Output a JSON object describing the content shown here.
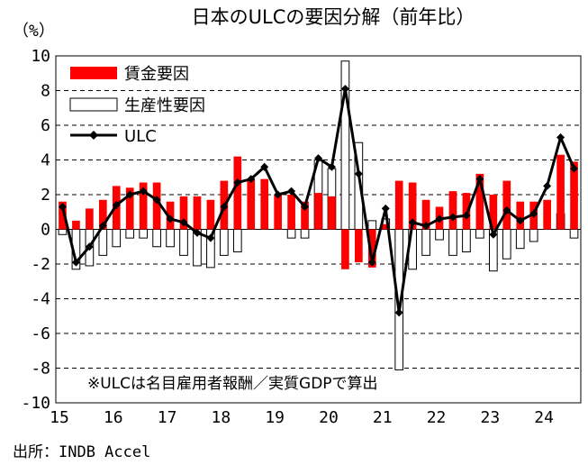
{
  "chart_data": {
    "type": "bar",
    "title": "日本のULCの要因分解（前年比）",
    "unit_label": "（%）",
    "ylim": [
      -10,
      10
    ],
    "y_ticks": [
      10,
      8,
      6,
      4,
      2,
      0,
      -2,
      -4,
      -6,
      -8,
      -10
    ],
    "grid": "horizontal dashed",
    "legend_position": "top-left",
    "note": "※ULCは名目雇用者報酬／実質GDPで算出",
    "source": "出所：INDB Accel",
    "x_tick_labels": [
      {
        "label": "15",
        "index": 0
      },
      {
        "label": "16",
        "index": 4
      },
      {
        "label": "17",
        "index": 8
      },
      {
        "label": "18",
        "index": 12
      },
      {
        "label": "19",
        "index": 16
      },
      {
        "label": "20",
        "index": 20
      },
      {
        "label": "21",
        "index": 24
      },
      {
        "label": "22",
        "index": 28
      },
      {
        "label": "23",
        "index": 32
      },
      {
        "label": "24",
        "index": 36
      }
    ],
    "series": [
      {
        "name": "賃金要因",
        "kind": "bar",
        "color": "#ff0000",
        "values": [
          1.6,
          0.5,
          1.2,
          1.7,
          2.5,
          2.4,
          2.7,
          2.7,
          1.6,
          1.9,
          1.9,
          1.7,
          2.8,
          4.2,
          2.9,
          2.9,
          2.0,
          2.0,
          1.6,
          2.1,
          1.9,
          -2.3,
          -1.9,
          -2.2,
          0.3,
          2.8,
          2.7,
          1.7,
          1.3,
          2.2,
          2.1,
          3.2,
          2.0,
          2.8,
          1.6,
          1.6,
          1.7,
          4.3,
          3.9
        ]
      },
      {
        "name": "生産性要因",
        "kind": "bar",
        "color": "#ffffff",
        "values": [
          -0.3,
          -2.3,
          -2.1,
          -1.5,
          -1.0,
          -0.5,
          -0.5,
          -1.0,
          -1.0,
          -1.5,
          -2.1,
          -2.2,
          -1.5,
          -1.3,
          0.0,
          0.0,
          0.0,
          -0.5,
          -0.5,
          4.0,
          3.5,
          9.7,
          5.0,
          0.5,
          0.6,
          -8.1,
          -2.3,
          -1.5,
          -0.6,
          -1.5,
          -1.3,
          -0.5,
          -2.4,
          -1.7,
          -1.1,
          -0.7,
          0.0,
          0.9,
          -0.5
        ]
      },
      {
        "name": "ULC",
        "kind": "line",
        "color": "#000000",
        "values": [
          1.3,
          -1.9,
          -1.0,
          0.2,
          1.4,
          2.0,
          2.2,
          1.7,
          0.6,
          0.4,
          -0.2,
          -0.5,
          1.3,
          2.7,
          2.9,
          3.6,
          2.0,
          2.2,
          1.3,
          4.1,
          3.6,
          8.1,
          3.2,
          -1.9,
          1.2,
          -4.8,
          0.4,
          0.2,
          0.6,
          0.7,
          0.8,
          2.9,
          -0.3,
          1.1,
          0.5,
          0.9,
          2.5,
          5.3,
          3.5
        ]
      }
    ]
  }
}
